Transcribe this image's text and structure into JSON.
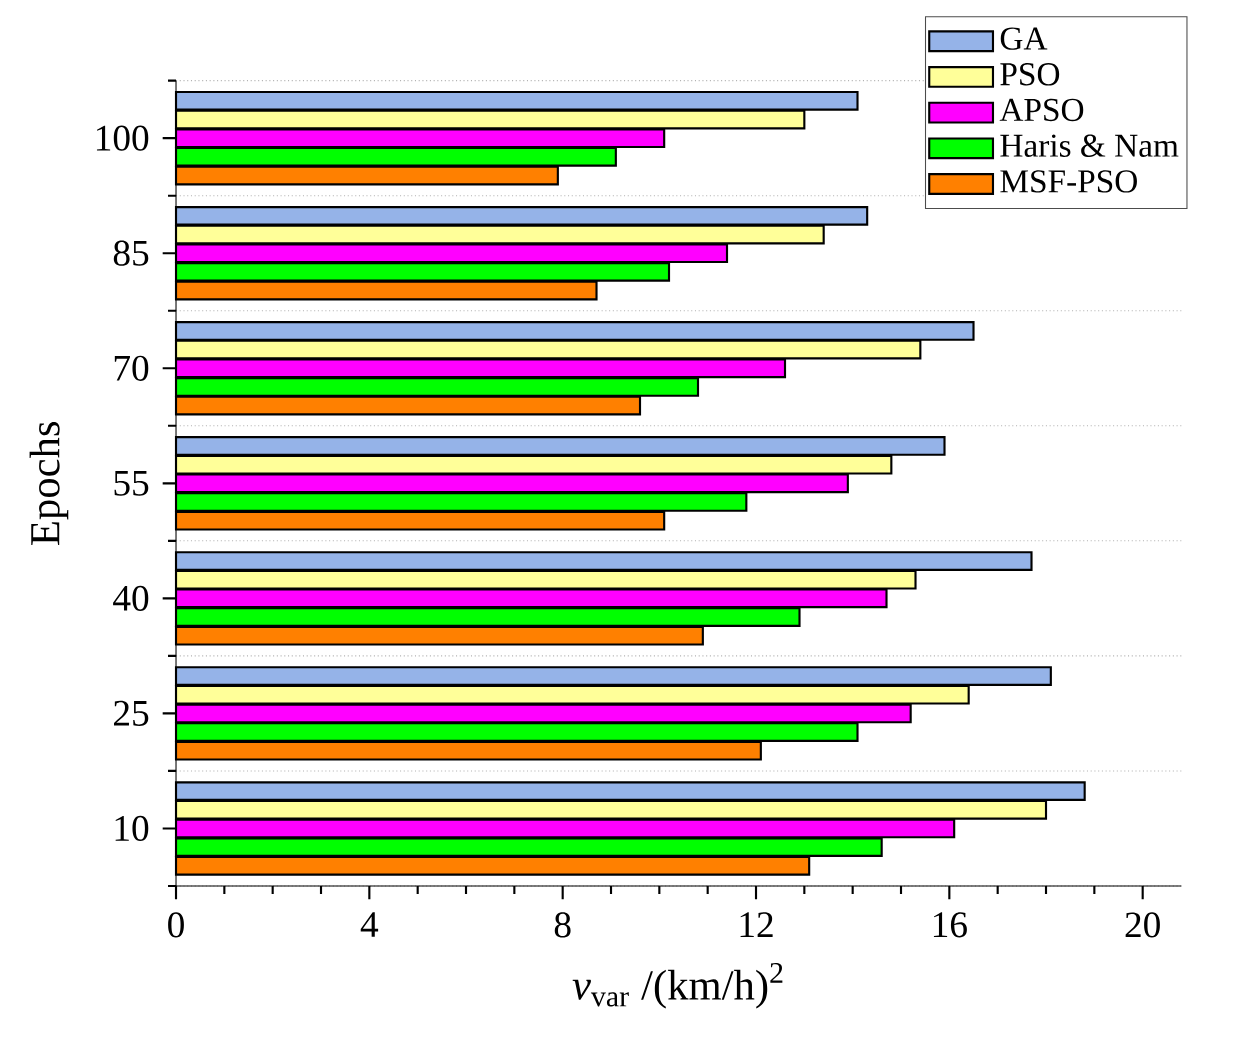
{
  "chart_data": {
    "type": "bar",
    "orientation": "horizontal",
    "xlabel": "*v*$_{var}$ /(km/h)$^{2}$",
    "ylabel": "Epochs",
    "categories": [
      "100",
      "85",
      "70",
      "55",
      "40",
      "25",
      "10"
    ],
    "series": [
      {
        "name": "GA",
        "color": "#95b3e8",
        "values": [
          14.1,
          14.3,
          16.5,
          15.9,
          17.7,
          18.1,
          18.8
        ]
      },
      {
        "name": "PSO",
        "color": "#ffff99",
        "values": [
          13.0,
          13.4,
          15.4,
          14.8,
          15.3,
          16.4,
          18.0
        ]
      },
      {
        "name": "APSO",
        "color": "#ff00ff",
        "values": [
          10.1,
          11.4,
          12.6,
          13.9,
          14.7,
          15.2,
          16.1
        ]
      },
      {
        "name": "Haris & Nam",
        "color": "#00ff00",
        "values": [
          9.1,
          10.2,
          10.8,
          11.8,
          12.9,
          14.1,
          14.6
        ]
      },
      {
        "name": "MSF-PSO",
        "color": "#ff8000",
        "values": [
          7.9,
          8.7,
          9.6,
          10.1,
          10.9,
          12.1,
          13.1
        ]
      }
    ],
    "xlim": [
      0,
      20.8
    ],
    "xticks": [
      0,
      4,
      8,
      12,
      16,
      20
    ],
    "grid": "y",
    "legend": "top right"
  }
}
